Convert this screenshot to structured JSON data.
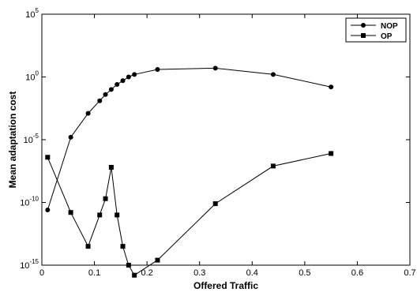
{
  "chart_data": {
    "type": "line",
    "xlabel": "Offered Traffic",
    "ylabel": "Mean adaptation cost",
    "xlim": [
      0,
      0.7
    ],
    "ylim_log10": [
      -15,
      5
    ],
    "y_scale": "log",
    "x_ticks": [
      "0",
      "0.1",
      "0.2",
      "0.3",
      "0.4",
      "0.5",
      "0.6",
      "0.7"
    ],
    "y_ticks": [
      {
        "base": "10",
        "exp": "-15",
        "log": -15
      },
      {
        "base": "10",
        "exp": "-10",
        "log": -10
      },
      {
        "base": "10",
        "exp": "-5",
        "log": -5
      },
      {
        "base": "10",
        "exp": "0",
        "log": 0
      },
      {
        "base": "10",
        "exp": "5",
        "log": 5
      }
    ],
    "legend_position": "top-right",
    "grid": false,
    "series": [
      {
        "name": "NOP",
        "marker": "circle",
        "x": [
          0.011,
          0.055,
          0.088,
          0.11,
          0.121,
          0.132,
          0.143,
          0.154,
          0.165,
          0.176,
          0.22,
          0.33,
          0.44,
          0.55
        ],
        "y_log10": [
          -10.6,
          -4.8,
          -2.9,
          -1.9,
          -1.4,
          -1.0,
          -0.6,
          -0.3,
          0.0,
          0.2,
          0.6,
          0.7,
          0.2,
          -0.8
        ]
      },
      {
        "name": "OP",
        "marker": "square",
        "x": [
          0.011,
          0.055,
          0.088,
          0.11,
          0.121,
          0.132,
          0.143,
          0.154,
          0.165,
          0.176,
          0.22,
          0.33,
          0.44,
          0.55
        ],
        "y_log10": [
          -6.4,
          -10.8,
          -13.5,
          -11.0,
          -9.7,
          -7.2,
          -11.0,
          -13.5,
          -15.0,
          -15.8,
          -14.6,
          -10.1,
          -7.1,
          -6.1
        ]
      }
    ]
  }
}
